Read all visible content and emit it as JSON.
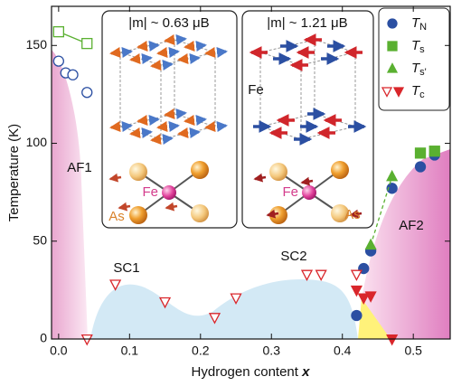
{
  "chart_data": {
    "type": "scatter",
    "xlabel": "Hydrogen content x",
    "ylabel": "Temperature (K)",
    "xlim": [
      -0.01,
      0.552
    ],
    "ylim": [
      0,
      170
    ],
    "xticks": [
      {
        "value": 0,
        "label": "0.0"
      },
      0.1,
      0.2,
      0.3,
      0.4,
      0.5
    ],
    "yticks": [
      0,
      50,
      100,
      150
    ],
    "series": [
      {
        "name": "TN",
        "marker": "circle",
        "color": "#2b4fa2",
        "x": [
          0.0,
          0.01,
          0.02,
          0.04,
          0.42,
          0.43,
          0.44,
          0.47,
          0.51,
          0.53
        ],
        "values": [
          142,
          136,
          135,
          126,
          12,
          36,
          45,
          77,
          88,
          94
        ],
        "filled": [
          false,
          false,
          false,
          false,
          true,
          true,
          true,
          true,
          true,
          true
        ]
      },
      {
        "name": "Ts",
        "marker": "square",
        "color": "#5ab031",
        "x": [
          0.0,
          0.04,
          0.51,
          0.53
        ],
        "values": [
          157,
          151,
          95,
          96
        ],
        "filled": [
          false,
          false,
          true,
          true
        ]
      },
      {
        "name": "Ts'",
        "marker": "triangle-up",
        "color": "#5ab031",
        "dashed": true,
        "x": [
          0.44,
          0.47
        ],
        "values": [
          48,
          83
        ],
        "filled": [
          true,
          true
        ]
      },
      {
        "name": "Tc",
        "marker": "triangle-down",
        "color": "#d9262b",
        "x": [
          0.04,
          0.08,
          0.15,
          0.22,
          0.25,
          0.35,
          0.37,
          0.42,
          0.42,
          0.43,
          0.44,
          0.47
        ],
        "values": [
          0,
          28,
          19,
          11,
          21,
          33,
          33,
          33,
          25,
          21,
          22,
          0
        ],
        "filled": [
          false,
          false,
          false,
          false,
          false,
          false,
          false,
          false,
          true,
          true,
          true,
          true
        ]
      }
    ],
    "annotations": [
      "AF1",
      "SC1",
      "SC2",
      "AF2",
      "|m| ~ 0.63 μB",
      "|m| ~ 1.21 μB",
      "Fe",
      "As",
      "Fe",
      "As",
      "Fe"
    ]
  }
}
